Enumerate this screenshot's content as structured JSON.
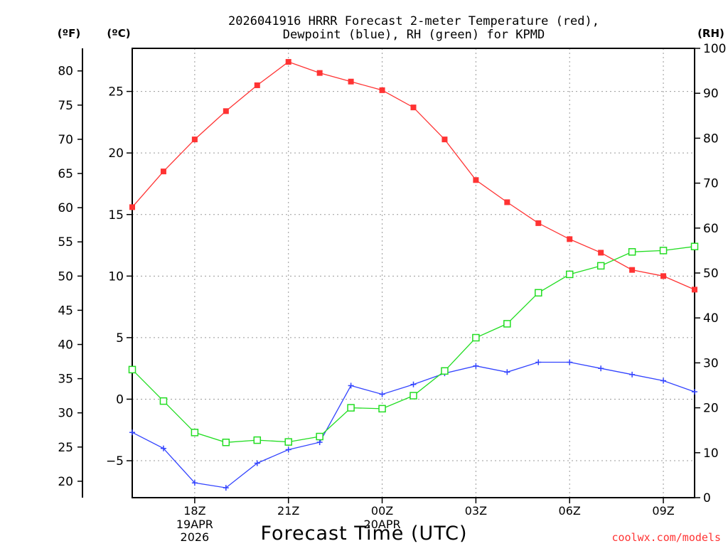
{
  "title_line1": "2026041916 HRRR Forecast 2-meter Temperature (red),",
  "title_line2": "Dewpoint (blue), RH (green) for KPMD",
  "xlabel": "Forecast Time (UTC)",
  "watermark": "coolwx.com/models",
  "unit_f": "(ºF)",
  "unit_c": "(ºC)",
  "unit_rh": "(RH)",
  "colors": {
    "temp": "#ff3333",
    "dewpoint": "#3344ff",
    "rh": "#22dd22"
  },
  "chart_data": {
    "type": "line",
    "title": "2026041916 HRRR Forecast 2-meter Temperature (red), Dewpoint (blue), RH (green) for KPMD",
    "xlabel": "Forecast Time (UTC)",
    "x_hours_from_16Z": [
      0,
      1,
      2,
      3,
      4,
      5,
      6,
      7,
      8,
      9,
      10,
      11,
      12,
      13,
      14,
      15,
      16,
      17,
      18
    ],
    "x_ticks": [
      {
        "hour": 2,
        "label": "18Z",
        "sub1": "19APR",
        "sub2": "2026"
      },
      {
        "hour": 5,
        "label": "21Z",
        "sub1": "",
        "sub2": ""
      },
      {
        "hour": 8,
        "label": "00Z",
        "sub1": "20APR",
        "sub2": ""
      },
      {
        "hour": 11,
        "label": "03Z",
        "sub1": "",
        "sub2": ""
      },
      {
        "hour": 14,
        "label": "06Z",
        "sub1": "",
        "sub2": ""
      },
      {
        "hour": 17,
        "label": "09Z",
        "sub1": "",
        "sub2": ""
      }
    ],
    "celsius_axis": {
      "ylim": [
        -8.0,
        28.5
      ],
      "ticks": [
        -5,
        0,
        5,
        10,
        15,
        20,
        25
      ]
    },
    "fahrenheit_axis": {
      "ticks": [
        20,
        25,
        30,
        35,
        40,
        45,
        50,
        55,
        60,
        65,
        70,
        75,
        80
      ]
    },
    "rh_axis": {
      "ylim": [
        0,
        100
      ],
      "ticks": [
        0,
        10,
        20,
        30,
        40,
        50,
        60,
        70,
        80,
        90,
        100
      ]
    },
    "series": [
      {
        "name": "Temperature (C)",
        "color": "red",
        "marker": "filled-square",
        "values": [
          15.6,
          18.5,
          21.1,
          23.4,
          25.5,
          27.4,
          26.5,
          25.8,
          25.1,
          23.7,
          21.1,
          17.8,
          16.0,
          14.3,
          13.0,
          11.9,
          10.5,
          10.0,
          8.9
        ]
      },
      {
        "name": "Dewpoint (C)",
        "color": "blue",
        "marker": "plus",
        "values": [
          -2.7,
          -4.0,
          -6.8,
          -7.2,
          -5.2,
          -4.1,
          -3.5,
          1.1,
          0.4,
          1.2,
          2.1,
          2.7,
          2.2,
          3.0,
          3.0,
          2.5,
          2.0,
          1.5,
          0.6
        ]
      },
      {
        "name": "RH (%)",
        "color": "green",
        "marker": "open-square",
        "values": [
          28.5,
          21.5,
          14.5,
          12.3,
          12.8,
          12.4,
          13.6,
          20.0,
          19.8,
          22.7,
          28.2,
          35.6,
          38.7,
          45.6,
          49.7,
          51.6,
          54.7,
          55.0,
          55.9
        ]
      }
    ]
  }
}
